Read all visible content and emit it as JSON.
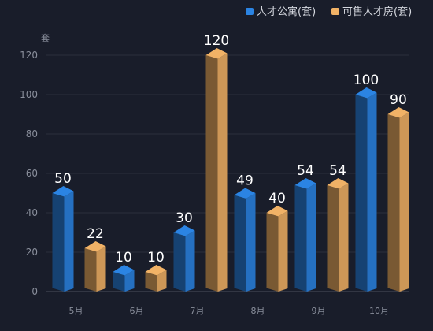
{
  "chart_data": {
    "type": "bar",
    "title": "",
    "ylabel": "套",
    "xlabel": "",
    "categories": [
      "5月",
      "6月",
      "7月",
      "8月",
      "9月",
      "10月"
    ],
    "series": [
      {
        "name": "人才公寓(套)",
        "values": [
          50,
          10,
          30,
          49,
          54,
          100
        ],
        "color": "#2b84e3"
      },
      {
        "name": "可售人才房(套)",
        "values": [
          22,
          10,
          120,
          40,
          54,
          90
        ],
        "color": "#f1b266"
      }
    ],
    "ylim": [
      0,
      120
    ],
    "yticks": [
      0,
      20,
      40,
      60,
      80,
      100,
      120
    ],
    "grid": true,
    "legend": "top-right",
    "style": "3d-bar"
  }
}
